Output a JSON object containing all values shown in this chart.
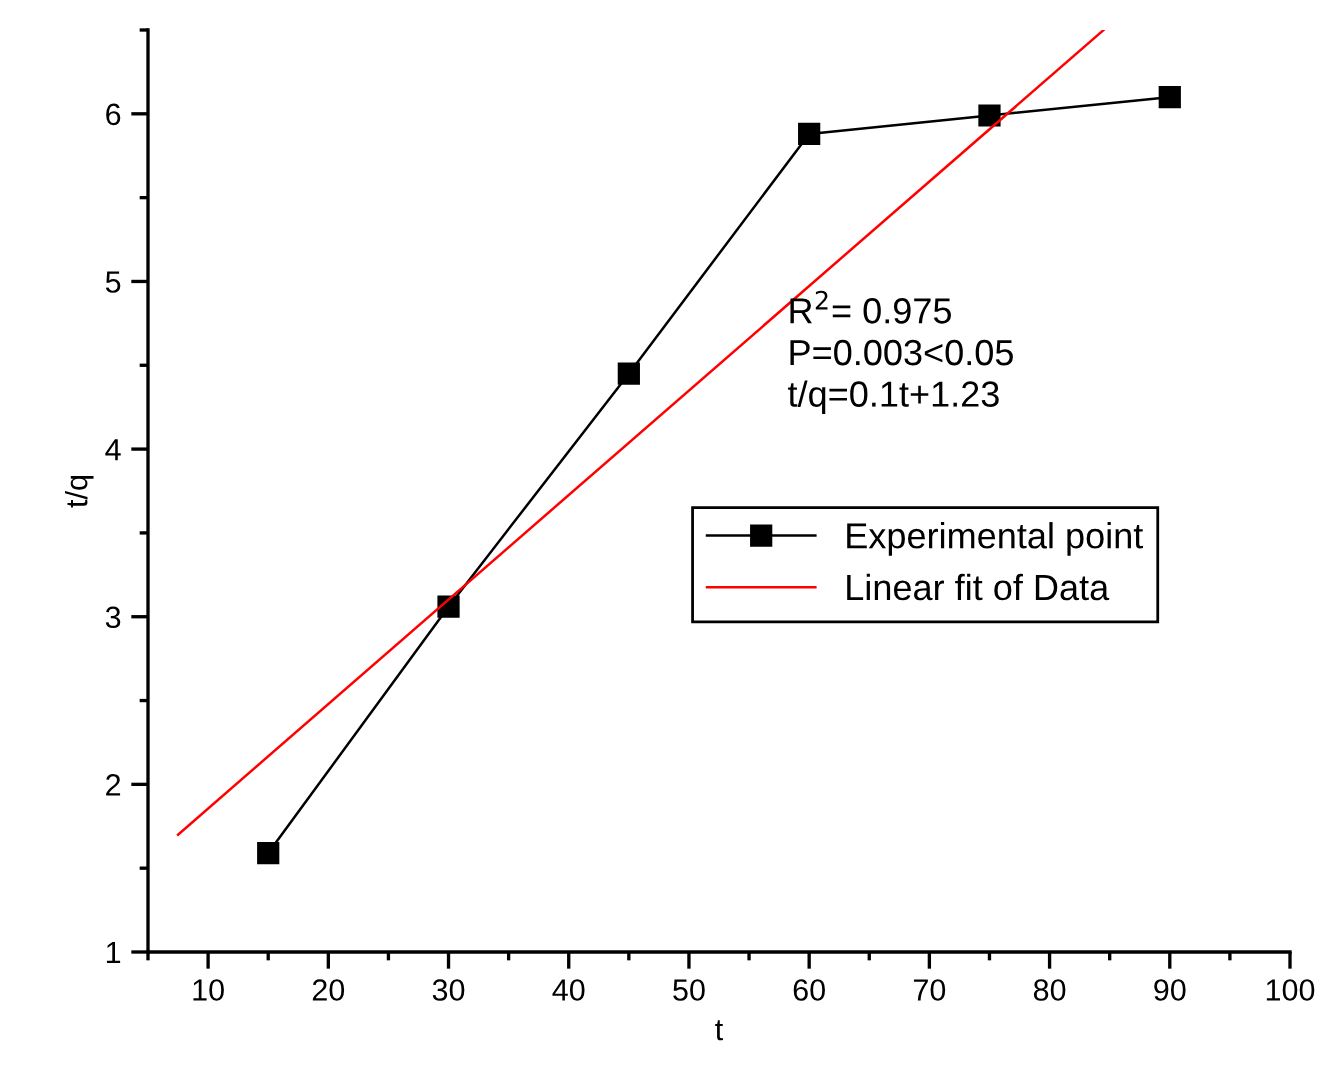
{
  "chart_data": {
    "type": "line",
    "xlabel": "t",
    "ylabel": "t/q",
    "xlim": [
      5,
      100
    ],
    "ylim": [
      1,
      6.5
    ],
    "xticks": [
      10,
      20,
      30,
      40,
      50,
      60,
      70,
      80,
      90,
      100
    ],
    "yticks": [
      1,
      2,
      3,
      4,
      5,
      6
    ],
    "grid": false,
    "legend": "right",
    "series": [
      {
        "name": "Experimental point",
        "color": "#000000",
        "marker": "square",
        "x": [
          15,
          30,
          45,
          60,
          75,
          90
        ],
        "values": [
          1.59,
          3.06,
          4.45,
          5.88,
          5.99,
          6.1
        ]
      },
      {
        "name": "Linear fit of Data",
        "color": "#ff0000",
        "marker": "none",
        "x": [
          7.5,
          84.5
        ],
        "values": [
          1.7,
          6.5
        ]
      }
    ],
    "annotations": [
      "R$^{2}$= 0.975\nP=0.003<0.05\nt/q=0.1t+1.23"
    ]
  }
}
